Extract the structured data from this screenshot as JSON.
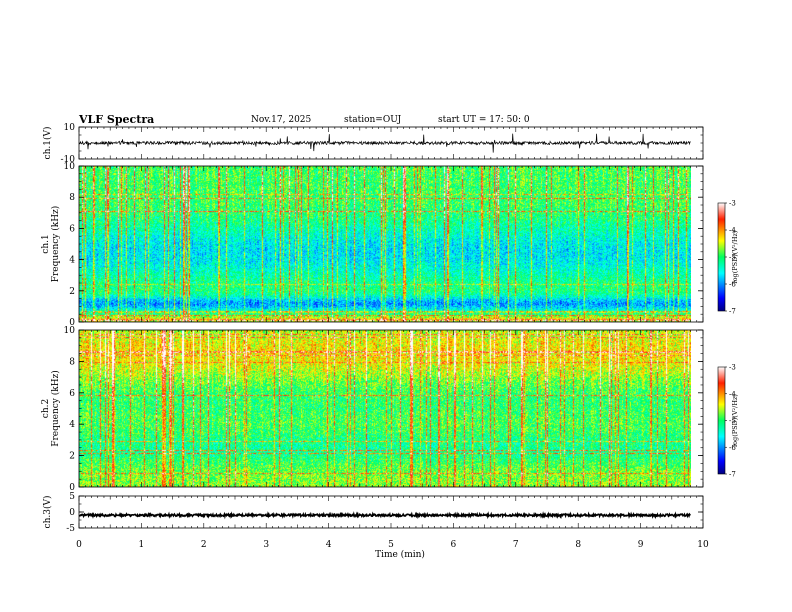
{
  "header": {
    "title": "VLF Spectra",
    "date": "Nov.17, 2025",
    "station": "station=OUJ",
    "start": "start  UT  =   17: 50: 0"
  },
  "chart_data": [
    {
      "type": "line",
      "name": "ch1-waveform",
      "ylabel": "ch.1(V)",
      "ylim": [
        -10,
        10
      ],
      "y_ticks": [
        "10",
        "-10"
      ],
      "baseline": 0,
      "x_range_min": [
        0,
        9.8
      ]
    },
    {
      "type": "heatmap",
      "name": "ch1-spectrogram",
      "ylabel": "ch.1 Frequency (kHz)",
      "ylim": [
        0,
        10
      ],
      "y_ticks": [
        "0",
        "2",
        "4",
        "6",
        "8",
        "10"
      ],
      "x_range_min": [
        0,
        9.8
      ],
      "colorbar": {
        "label": "log(PSD)(V²/Hz)",
        "range": [
          -7,
          -3
        ],
        "ticks": [
          "-3",
          "-4",
          "-5",
          "-6",
          "-7"
        ]
      }
    },
    {
      "type": "heatmap",
      "name": "ch2-spectrogram",
      "ylabel": "ch.2 Frequency (kHz)",
      "ylim": [
        0,
        10
      ],
      "y_ticks": [
        "0",
        "2",
        "4",
        "6",
        "8",
        "10"
      ],
      "x_range_min": [
        0,
        9.8
      ],
      "colorbar": {
        "label": "log(PSD)(V²/Hz)",
        "range": [
          -7,
          -3
        ],
        "ticks": [
          "-3",
          "-4",
          "-5",
          "-6",
          "-7"
        ]
      }
    },
    {
      "type": "line",
      "name": "ch3-waveform",
      "ylabel": "ch.3(V)",
      "ylim": [
        -5,
        5
      ],
      "y_ticks": [
        "5",
        "0",
        "-5"
      ],
      "baseline": -1,
      "x_range_min": [
        0,
        9.8
      ]
    }
  ],
  "x_axis": {
    "label": "Time  (min)",
    "range": [
      0,
      10
    ],
    "ticks": [
      "0",
      "1",
      "2",
      "3",
      "4",
      "5",
      "6",
      "7",
      "8",
      "9",
      "10"
    ]
  }
}
